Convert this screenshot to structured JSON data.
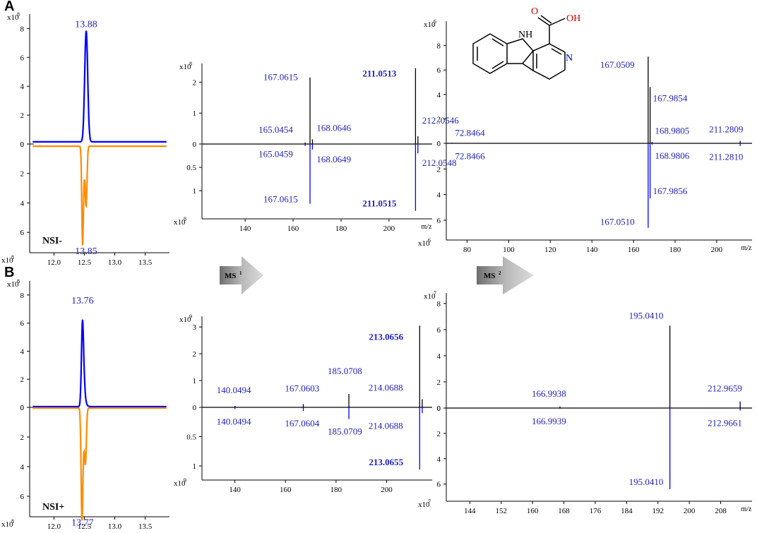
{
  "panel_labels": {
    "a": "A",
    "b": "B"
  },
  "colors": {
    "blue": "#0000ff",
    "orange": "#ff8c00",
    "black": "#000000",
    "label": "#1f1fbf",
    "red": "#d40000"
  },
  "arrows": {
    "ms1": "MS",
    "ms1_sup": "1",
    "ms2": "MS",
    "ms2_sup": "2"
  },
  "structure": {
    "nh": "NH",
    "n": "N",
    "o": "O",
    "oh": "OH"
  },
  "chart_data": [
    {
      "id": "A-chrom",
      "type": "line",
      "xlim": [
        11.6,
        13.9
      ],
      "xticks": [
        12.0,
        12.5,
        13.0,
        13.5
      ],
      "xticklabels": [
        "12.0",
        "12.5",
        "13.0",
        "13.5"
      ],
      "top_exp": "x10",
      "top_exp_sup": "8",
      "bottom_exp": "x10",
      "bottom_exp_sup": "8",
      "top_ylim": [
        0,
        9
      ],
      "top_yticks": [
        0,
        2,
        4,
        6,
        8
      ],
      "top_yticklabels": [
        "0",
        "2",
        "4",
        "6",
        "8"
      ],
      "bottom_ylim": [
        0,
        7
      ],
      "bottom_yticks": [
        0,
        2,
        4,
        6
      ],
      "bottom_yticklabels": [
        "0",
        "2",
        "4",
        "6"
      ],
      "mode_label": "NSI-",
      "top": {
        "color": "#0000ff",
        "peaks": [
          {
            "center": 12.53,
            "height": 7.7,
            "width": 0.035
          }
        ],
        "baseline": 0.15
      },
      "bottom": {
        "color": "#ff8c00",
        "peaks": [
          {
            "center": 12.47,
            "height": 6.2,
            "width": 0.018
          },
          {
            "center": 12.53,
            "height": 3.5,
            "width": 0.02
          },
          {
            "center": 12.5,
            "height": 1.5,
            "width": 0.03
          }
        ],
        "baseline": 0.15
      },
      "top_label": {
        "x": 12.53,
        "y": 8.0,
        "text": "13.88"
      },
      "bottom_label": {
        "x": 12.53,
        "y": 6.9,
        "text": "13.85"
      }
    },
    {
      "id": "A-ms1",
      "type": "bar",
      "xlim": [
        122,
        218
      ],
      "xticks": [
        140,
        160,
        180,
        200
      ],
      "xticklabels": [
        "140",
        "160",
        "180",
        "200"
      ],
      "xunit": "m/z",
      "top_exp": "x10",
      "top_exp_sup": "8",
      "bottom_exp": "x10",
      "bottom_exp_sup": "8",
      "top_ylim": [
        0,
        2.6
      ],
      "top_yticks": [
        0,
        1,
        2
      ],
      "top_yticklabels": [
        "0",
        "1",
        "2"
      ],
      "bottom_ylim": [
        0,
        1.45
      ],
      "bottom_yticks": [
        0.5,
        1
      ],
      "bottom_yticklabels": [
        "0.5",
        "1"
      ],
      "top_peaks": [
        {
          "mz": 165.0454,
          "y": 0.05,
          "label": "165.0454",
          "bold": false
        },
        {
          "mz": 167.0615,
          "y": 2.15,
          "label": "167.0615",
          "bold": false
        },
        {
          "mz": 168.0646,
          "y": 0.15,
          "label": "168.0646",
          "bold": false
        },
        {
          "mz": 211.0513,
          "y": 2.45,
          "label": "211.0513",
          "bold": true
        },
        {
          "mz": 212.0546,
          "y": 0.25,
          "label": "212..0546",
          "bold": false
        }
      ],
      "bottom_peaks": [
        {
          "mz": 165.0459,
          "y": 0.04,
          "label": "165.0459",
          "bold": false
        },
        {
          "mz": 167.0615,
          "y": 1.28,
          "label": "167.0615",
          "bold": false
        },
        {
          "mz": 168.0649,
          "y": 0.12,
          "label": "168.0649",
          "bold": false
        },
        {
          "mz": 211.0515,
          "y": 1.43,
          "label": "211.0515",
          "bold": true
        },
        {
          "mz": 212.0548,
          "y": 0.2,
          "label": "212.0548",
          "bold": false
        }
      ]
    },
    {
      "id": "A-ms2",
      "type": "bar",
      "xlim": [
        70,
        217
      ],
      "xticks": [
        80,
        100,
        120,
        140,
        160,
        180,
        200
      ],
      "xticklabels": [
        "80",
        "100",
        "120",
        "140",
        "160",
        "180",
        "200"
      ],
      "xunit": "m/z",
      "top_exp": "x10",
      "top_exp_sup": "6",
      "bottom_exp": "x10",
      "bottom_exp_sup": "6",
      "top_ylim": [
        0,
        10
      ],
      "top_yticks": [
        0,
        2,
        4,
        6,
        8
      ],
      "top_yticklabels": [
        "0",
        "2",
        "4",
        "6",
        "8"
      ],
      "bottom_ylim": [
        0,
        7
      ],
      "bottom_yticks": [
        2,
        4,
        6
      ],
      "bottom_yticklabels": [
        "2",
        "4",
        "6"
      ],
      "top_peaks": [
        {
          "mz": 72.8464,
          "y": 0.04,
          "label": "72.8464",
          "bold": false
        },
        {
          "mz": 167.0509,
          "y": 7.1,
          "label": "167.0509",
          "bold": false
        },
        {
          "mz": 167.9854,
          "y": 4.6,
          "label": "167.9854",
          "bold": false
        },
        {
          "mz": 168.9805,
          "y": 0.1,
          "label": "168.9805",
          "bold": false
        },
        {
          "mz": 211.2809,
          "y": 0.2,
          "label": "211.2809",
          "bold": false
        }
      ],
      "bottom_peaks": [
        {
          "mz": 72.8466,
          "y": 0.04,
          "label": "72.8466",
          "bold": false
        },
        {
          "mz": 167.051,
          "y": 6.6,
          "label": "167.0510",
          "bold": false
        },
        {
          "mz": 167.9856,
          "y": 4.3,
          "label": "167.9856",
          "bold": false
        },
        {
          "mz": 168.9806,
          "y": 0.1,
          "label": "168.9806",
          "bold": false
        },
        {
          "mz": 211.281,
          "y": 0.2,
          "label": "211.2810",
          "bold": false
        }
      ]
    },
    {
      "id": "B-chrom",
      "type": "line",
      "xlim": [
        11.6,
        13.9
      ],
      "xticks": [
        12.0,
        12.5,
        13.0,
        13.5
      ],
      "xticklabels": [
        "12.0",
        "12.5",
        "13.0",
        "13.5"
      ],
      "top_exp": "x10",
      "top_exp_sup": "8",
      "bottom_exp": "x10",
      "bottom_exp_sup": "8",
      "top_ylim": [
        0,
        9
      ],
      "top_yticks": [
        0,
        2,
        4,
        6,
        8
      ],
      "top_yticklabels": [
        "0",
        "2",
        "4",
        "6",
        "8"
      ],
      "bottom_ylim": [
        0,
        7
      ],
      "bottom_yticks": [
        0,
        2,
        4,
        6
      ],
      "bottom_yticklabels": [
        "0",
        "2",
        "4",
        "6"
      ],
      "mode_label": "NSI+",
      "top": {
        "color": "#0000ff",
        "peaks": [
          {
            "center": 12.47,
            "height": 6.2,
            "width": 0.025,
            "tail": 0.18
          }
        ],
        "baseline": 0.05
      },
      "bottom": {
        "color": "#ff8c00",
        "peaks": [
          {
            "center": 12.46,
            "height": 6.9,
            "width": 0.02
          },
          {
            "center": 12.52,
            "height": 3.0,
            "width": 0.02
          },
          {
            "center": 12.49,
            "height": 2.0,
            "width": 0.03
          }
        ],
        "baseline": 0.05
      },
      "top_label": {
        "x": 12.47,
        "y": 7.3,
        "text": "13.76"
      },
      "bottom_label": {
        "x": 12.47,
        "y": 7.4,
        "text": "13.77"
      }
    },
    {
      "id": "B-ms1",
      "type": "bar",
      "xlim": [
        127,
        218
      ],
      "xticks": [
        140,
        160,
        180,
        200
      ],
      "xticklabels": [
        "140",
        "160",
        "180",
        "200"
      ],
      "xunit": "",
      "top_exp": "x10",
      "top_exp_sup": "9",
      "bottom_exp": "x10",
      "bottom_exp_sup": "9",
      "top_ylim": [
        0,
        3.4
      ],
      "top_yticks": [
        0,
        1,
        2,
        3
      ],
      "top_yticklabels": [
        "0",
        "1",
        "2",
        "3"
      ],
      "bottom_ylim": [
        0,
        1.12
      ],
      "bottom_yticks": [
        0.5,
        1
      ],
      "bottom_yticklabels": [
        "0.5",
        "1"
      ],
      "top_peaks": [
        {
          "mz": 140.0494,
          "y": 0.05,
          "label": "140.0494",
          "bold": false
        },
        {
          "mz": 167.0603,
          "y": 0.12,
          "label": "167.0603",
          "bold": false
        },
        {
          "mz": 185.0708,
          "y": 0.5,
          "label": "185.0708",
          "bold": false
        },
        {
          "mz": 213.0656,
          "y": 3.05,
          "label": "213.0656",
          "bold": true
        },
        {
          "mz": 214.0688,
          "y": 0.3,
          "label": "214.0688",
          "bold": false
        }
      ],
      "bottom_peaks": [
        {
          "mz": 140.0494,
          "y": 0.03,
          "label": "140.0494",
          "bold": false
        },
        {
          "mz": 167.0604,
          "y": 0.06,
          "label": "167.0604",
          "bold": false
        },
        {
          "mz": 185.0709,
          "y": 0.2,
          "label": "185.0709",
          "bold": false
        },
        {
          "mz": 213.0655,
          "y": 1.06,
          "label": "213.0655",
          "bold": true
        },
        {
          "mz": 214.0688,
          "y": 0.1,
          "label": "214.0688",
          "bold": false
        }
      ]
    },
    {
      "id": "B-ms2",
      "type": "bar",
      "xlim": [
        138,
        216
      ],
      "xticks": [
        144,
        152,
        160,
        168,
        176,
        184,
        192,
        200,
        208
      ],
      "xticklabels": [
        "144",
        "152",
        "160",
        "168",
        "176",
        "184",
        "192",
        "200",
        "208"
      ],
      "xunit": "m/z",
      "top_exp": "x10",
      "top_exp_sup": "7",
      "bottom_exp": "x10",
      "bottom_exp_sup": "7",
      "top_ylim": [
        0,
        8.8
      ],
      "top_yticks": [
        0,
        2,
        4,
        6,
        8
      ],
      "top_yticklabels": [
        "0",
        "2",
        "4",
        "6",
        "8"
      ],
      "bottom_ylim": [
        0,
        6.8
      ],
      "bottom_yticks": [
        0,
        2,
        4,
        6
      ],
      "bottom_yticklabels": [
        "0",
        "2",
        "4",
        "6"
      ],
      "top_peaks": [
        {
          "mz": 166.9938,
          "y": 0.12,
          "label": "166.9938",
          "bold": false
        },
        {
          "mz": 195.041,
          "y": 6.3,
          "label": "195.0410",
          "bold": false
        },
        {
          "mz": 212.9659,
          "y": 0.5,
          "label": "212.9659",
          "bold": false
        }
      ],
      "bottom_peaks": [
        {
          "mz": 166.9939,
          "y": 0.05,
          "label": "166.9939",
          "bold": false
        },
        {
          "mz": 195.041,
          "y": 6.4,
          "label": "195.0410",
          "bold": false
        },
        {
          "mz": 212.9661,
          "y": 0.2,
          "label": "212.9661",
          "bold": false
        }
      ]
    }
  ]
}
